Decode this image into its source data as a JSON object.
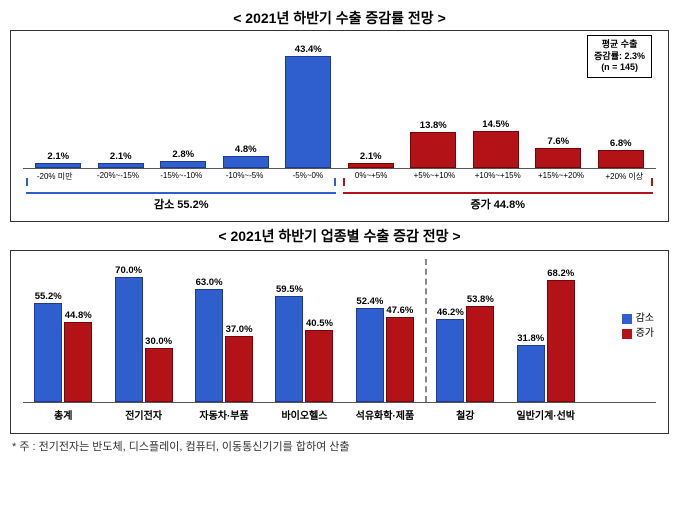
{
  "chart1": {
    "title": "< 2021년 하반기 수출 증감률 전망 >",
    "max": 50,
    "bars": [
      {
        "label": "-20% 미만",
        "value": 2.1,
        "color": "blue"
      },
      {
        "label": "-20%~-15%",
        "value": 2.1,
        "color": "blue"
      },
      {
        "label": "-15%~-10%",
        "value": 2.8,
        "color": "blue"
      },
      {
        "label": "-10%~-5%",
        "value": 4.8,
        "color": "blue"
      },
      {
        "label": "-5%~0%",
        "value": 43.4,
        "color": "blue"
      },
      {
        "label": "0%~+5%",
        "value": 2.1,
        "color": "red"
      },
      {
        "label": "+5%~+10%",
        "value": 13.8,
        "color": "red"
      },
      {
        "label": "+10%~+15%",
        "value": 14.5,
        "color": "red"
      },
      {
        "label": "+15%~+20%",
        "value": 7.6,
        "color": "red"
      },
      {
        "label": "+20% 이상",
        "value": 6.8,
        "color": "red"
      }
    ],
    "bracket_left_label": "감소 55.2%",
    "bracket_right_label": "증가 44.8%",
    "info_box": [
      "평균 수출",
      "증감률: 2.3%",
      "(n = 145)"
    ]
  },
  "chart2": {
    "title": "< 2021년 하반기 업종별 수출 증감 전망 >",
    "max": 80,
    "legend": {
      "blue": "감소",
      "red": "증가"
    },
    "groups": [
      {
        "label": "총계",
        "blue": 55.2,
        "red": 44.8
      },
      {
        "label": "전기전자",
        "blue": 70.0,
        "red": 30.0
      },
      {
        "label": "자동차·부품",
        "blue": 63.0,
        "red": 37.0
      },
      {
        "label": "바이오헬스",
        "blue": 59.5,
        "red": 40.5
      },
      {
        "label": "석유화학·제품",
        "blue": 52.4,
        "red": 47.6
      },
      {
        "label": "철강",
        "blue": 46.2,
        "red": 53.8
      },
      {
        "label": "일반기계·선박",
        "blue": 31.8,
        "red": 68.2
      }
    ],
    "divider_after_index": 4
  },
  "footnote": "* 주 : 전기전자는 반도체, 디스플레이, 컴퓨터, 이동통신기기를 합하여 산출",
  "colors": {
    "blue": "#2f5fce",
    "red": "#b31217",
    "border": "#333333",
    "text": "#000000",
    "background": "#ffffff"
  }
}
